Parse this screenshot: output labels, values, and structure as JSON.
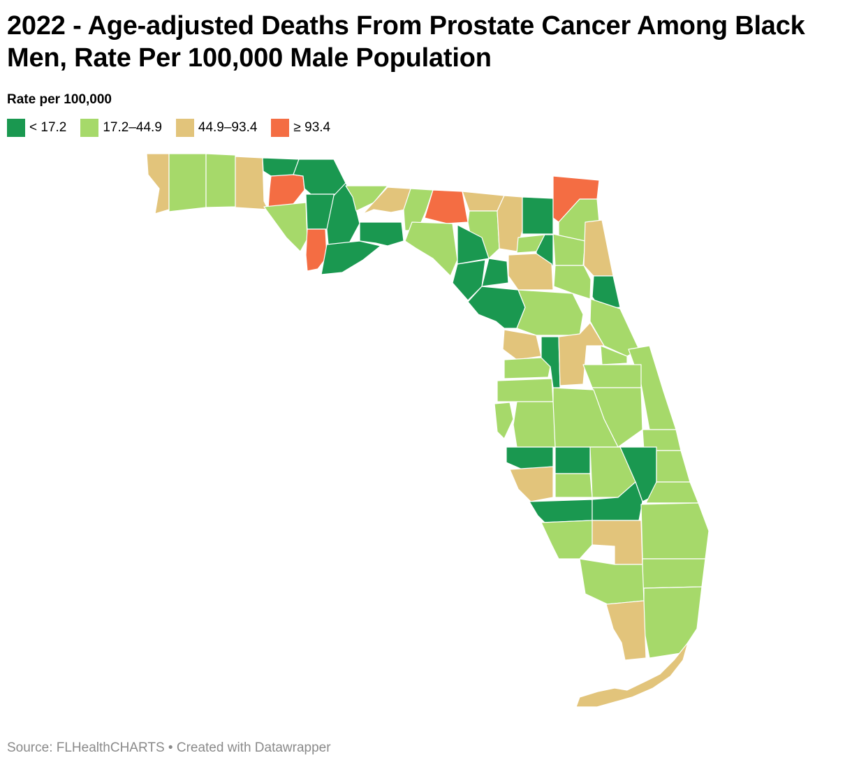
{
  "title": "2022 - Age-adjusted Deaths From Prostate Cancer Among Black Men, Rate Per 100,000 Male Population",
  "legend": {
    "title": "Rate per 100,000",
    "items": [
      {
        "label": "< 17.2",
        "color": "#1a9850"
      },
      {
        "label": "17.2–44.9",
        "color": "#a6d96a"
      },
      {
        "label": "44.9–93.4",
        "color": "#e2c47b"
      },
      {
        "label": "≥ 93.4",
        "color": "#f46d43"
      }
    ]
  },
  "map": {
    "region": "Florida counties",
    "classes": {
      "low": "#1a9850",
      "mid_low": "#a6d96a",
      "mid_high": "#e2c47b",
      "high": "#f46d43",
      "border": "#ffffff"
    }
  },
  "footer": {
    "source": "Source: FLHealthCHARTS",
    "separator": " • ",
    "credit": "Created with Datawrapper"
  }
}
